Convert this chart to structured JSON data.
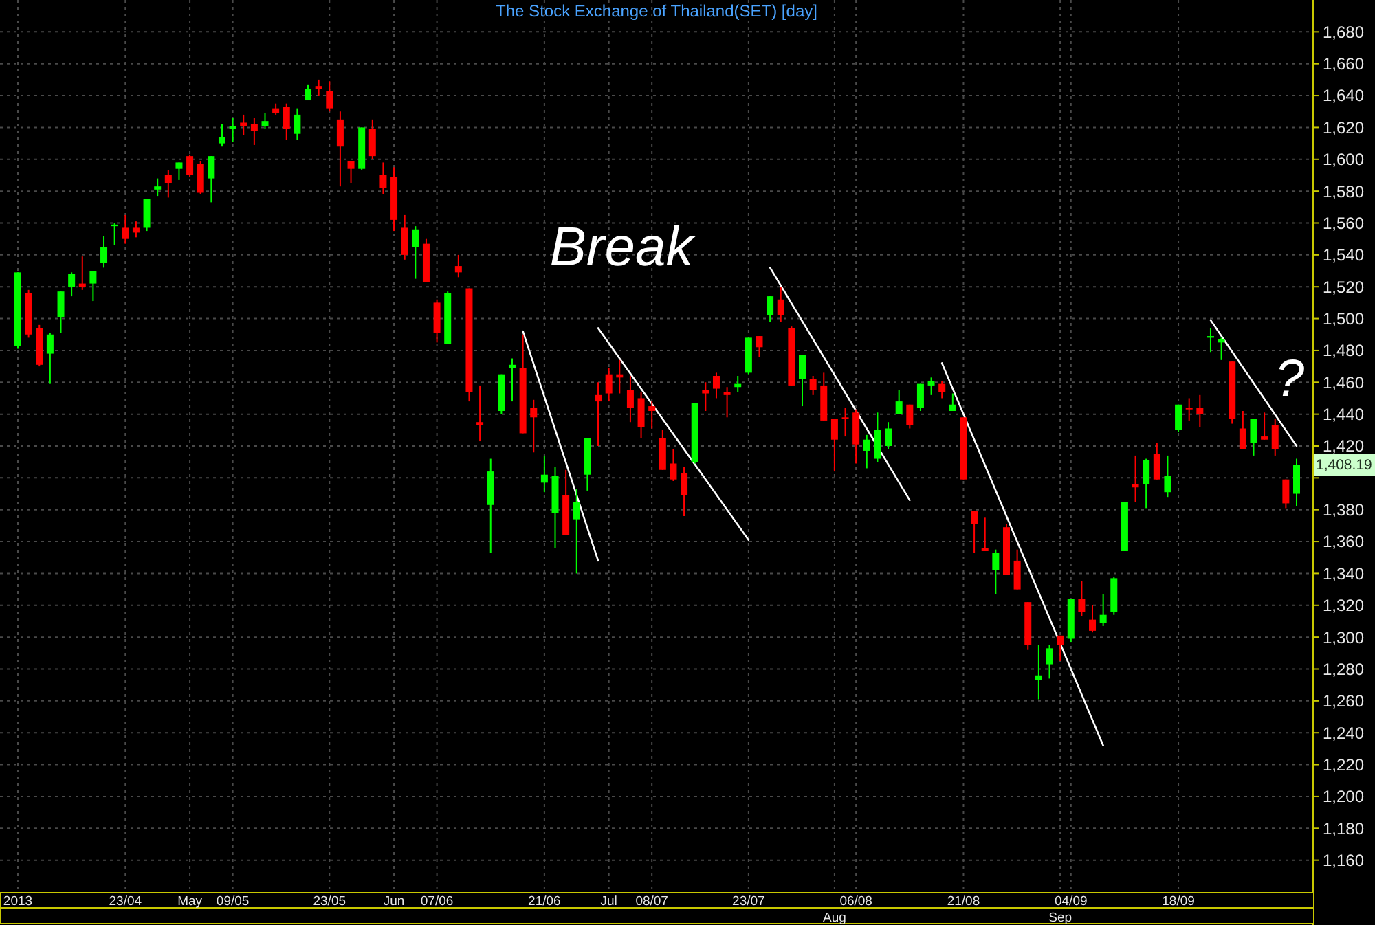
{
  "chart_data": {
    "type": "candlestick",
    "title": "The Stock Exchange of Thailand(SET) [day]",
    "categories": [
      "2013",
      null,
      null,
      null,
      null,
      null,
      null,
      null,
      null,
      null,
      "23/04",
      null,
      null,
      null,
      null,
      null,
      "May",
      null,
      null,
      null,
      "09/05",
      null,
      null,
      null,
      null,
      null,
      null,
      null,
      null,
      "23/05",
      null,
      null,
      null,
      null,
      null,
      "Jun",
      null,
      null,
      null,
      "07/06",
      null,
      null,
      null,
      null,
      null,
      null,
      null,
      null,
      null,
      "21/06",
      null,
      null,
      null,
      null,
      null,
      "Jul",
      null,
      null,
      null,
      "08/07",
      null,
      null,
      null,
      null,
      null,
      null,
      null,
      null,
      "23/07",
      null,
      null,
      null,
      null,
      null,
      null,
      null,
      "Aug",
      null,
      "06/08",
      null,
      null,
      null,
      null,
      null,
      null,
      null,
      null,
      null,
      "21/08",
      null,
      null,
      null,
      null,
      null,
      null,
      null,
      null,
      "Sep",
      "04/09",
      null,
      null,
      null,
      null,
      null,
      null,
      null,
      null,
      null,
      "18/09",
      null,
      null,
      null,
      null,
      null,
      null,
      null,
      null,
      null,
      null,
      null
    ],
    "series": [
      {
        "type": "candlestick",
        "ohlc": [
          [
            1483,
            1529,
            1481,
            1529
          ],
          [
            1516,
            1518,
            1488,
            1490
          ],
          [
            1494,
            1496,
            1470,
            1471
          ],
          [
            1478,
            1491,
            1459,
            1490
          ],
          [
            1501,
            1517,
            1491,
            1517
          ],
          [
            1520,
            1529,
            1514,
            1528
          ],
          [
            1522,
            1539,
            1518,
            1520
          ],
          [
            1522,
            1530,
            1511,
            1530
          ],
          [
            1535,
            1552,
            1532,
            1545
          ],
          [
            1558,
            1560,
            1546,
            1559
          ],
          [
            1557,
            1565,
            1547,
            1550
          ],
          [
            1557,
            1561,
            1551,
            1554
          ],
          [
            1557,
            1575,
            1555,
            1575
          ],
          [
            1581,
            1588,
            1577,
            1583
          ],
          [
            1590,
            1593,
            1576,
            1585
          ],
          [
            1594,
            1598,
            1587,
            1598
          ],
          [
            1602,
            1603,
            1589,
            1590
          ],
          [
            1597,
            1599,
            1578,
            1579
          ],
          [
            1588,
            1602,
            1573,
            1602
          ],
          [
            1610,
            1622,
            1608,
            1614
          ],
          [
            1619,
            1626,
            1611,
            1621
          ],
          [
            1623,
            1628,
            1615,
            1621
          ],
          [
            1622,
            1626,
            1609,
            1618
          ],
          [
            1621,
            1629,
            1619,
            1624
          ],
          [
            1632,
            1635,
            1628,
            1629
          ],
          [
            1633,
            1635,
            1612,
            1619
          ],
          [
            1616,
            1632,
            1612,
            1628
          ],
          [
            1637,
            1647,
            1637,
            1644
          ],
          [
            1646,
            1650,
            1640,
            1644
          ],
          [
            1643,
            1649,
            1630,
            1632
          ],
          [
            1625,
            1630,
            1583,
            1608
          ],
          [
            1599,
            1599,
            1585,
            1594
          ],
          [
            1594,
            1620,
            1593,
            1620
          ],
          [
            1619,
            1625,
            1600,
            1602
          ],
          [
            1590,
            1598,
            1578,
            1582
          ],
          [
            1589,
            1595,
            1555,
            1562
          ],
          [
            1557,
            1565,
            1537,
            1540
          ],
          [
            1545,
            1558,
            1525,
            1556
          ],
          [
            1547,
            1550,
            1523,
            1523
          ],
          [
            1510,
            1512,
            1485,
            1491
          ],
          [
            1484,
            1517,
            1484,
            1516
          ],
          [
            1533,
            1540,
            1526,
            1529
          ],
          [
            1519,
            1519,
            1448,
            1454
          ],
          [
            1435,
            1458,
            1423,
            1433
          ],
          [
            1383,
            1412,
            1353,
            1404
          ],
          [
            1442,
            1465,
            1440,
            1465
          ],
          [
            1469,
            1475,
            1448,
            1471
          ],
          [
            1469,
            1490,
            1428,
            1428
          ],
          [
            1444,
            1449,
            1416,
            1438
          ],
          [
            1397,
            1414,
            1391,
            1402
          ],
          [
            1378,
            1407,
            1356,
            1401
          ],
          [
            1389,
            1405,
            1364,
            1364
          ],
          [
            1374,
            1393,
            1340,
            1385
          ],
          [
            1402,
            1425,
            1392,
            1425
          ],
          [
            1452,
            1460,
            1420,
            1448
          ],
          [
            1465,
            1469,
            1448,
            1453
          ],
          [
            1465,
            1474,
            1453,
            1463
          ],
          [
            1455,
            1464,
            1435,
            1444
          ],
          [
            1450,
            1454,
            1425,
            1432
          ],
          [
            1445,
            1448,
            1431,
            1442
          ],
          [
            1425,
            1430,
            1405,
            1405
          ],
          [
            1409,
            1418,
            1398,
            1399
          ],
          [
            1403,
            1407,
            1376,
            1389
          ],
          [
            1410,
            1447,
            1409,
            1447
          ],
          [
            1455,
            1460,
            1442,
            1453
          ],
          [
            1464,
            1466,
            1450,
            1456
          ],
          [
            1454,
            1457,
            1438,
            1452
          ],
          [
            1457,
            1464,
            1454,
            1459
          ],
          [
            1466,
            1488,
            1465,
            1488
          ],
          [
            1489,
            1489,
            1476,
            1482
          ],
          [
            1502,
            1514,
            1498,
            1514
          ],
          [
            1512,
            1520,
            1498,
            1502
          ],
          [
            1494,
            1495,
            1458,
            1458
          ],
          [
            1462,
            1477,
            1445,
            1477
          ],
          [
            1462,
            1464,
            1452,
            1455
          ],
          [
            1458,
            1466,
            1436,
            1436
          ],
          [
            1437,
            1437,
            1404,
            1424
          ],
          [
            1438,
            1444,
            1426,
            1437
          ],
          [
            1441,
            1443,
            1409,
            1421
          ],
          [
            1417,
            1427,
            1406,
            1424
          ],
          [
            1412,
            1441,
            1410,
            1430
          ],
          [
            1420,
            1435,
            1418,
            1431
          ],
          [
            1440,
            1455,
            1440,
            1448
          ],
          [
            1446,
            1446,
            1431,
            1433
          ],
          [
            1444,
            1459,
            1442,
            1459
          ],
          [
            1458,
            1463,
            1452,
            1461
          ],
          [
            1459,
            1461,
            1450,
            1454
          ],
          [
            1442,
            1453,
            1442,
            1446
          ],
          [
            1438,
            1438,
            1399,
            1399
          ],
          [
            1379,
            1379,
            1353,
            1371
          ],
          [
            1356,
            1375,
            1354,
            1354
          ],
          [
            1342,
            1355,
            1327,
            1353
          ],
          [
            1369,
            1371,
            1339,
            1339
          ],
          [
            1348,
            1355,
            1330,
            1330
          ],
          [
            1322,
            1322,
            1292,
            1295
          ],
          [
            1273,
            1295,
            1261,
            1276
          ],
          [
            1283,
            1295,
            1274,
            1293
          ],
          [
            1301,
            1301,
            1285,
            1295
          ],
          [
            1299,
            1324,
            1297,
            1324
          ],
          [
            1324,
            1335,
            1313,
            1316
          ],
          [
            1311,
            1320,
            1303,
            1304
          ],
          [
            1309,
            1327,
            1307,
            1314
          ],
          [
            1316,
            1338,
            1314,
            1337
          ],
          [
            1354,
            1385,
            1354,
            1385
          ],
          [
            1396,
            1414,
            1385,
            1394
          ],
          [
            1396,
            1412,
            1381,
            1411
          ],
          [
            1415,
            1422,
            1399,
            1399
          ],
          [
            1391,
            1414,
            1388,
            1401
          ],
          [
            1430,
            1446,
            1429,
            1446
          ],
          [
            1444,
            1450,
            1436,
            1443
          ],
          [
            1444,
            1452,
            1432,
            1440
          ],
          [
            1488,
            1494,
            1479,
            1489
          ],
          [
            1485,
            1488,
            1474,
            1487
          ],
          [
            1473,
            1473,
            1434,
            1437
          ],
          [
            1431,
            1442,
            1418,
            1418
          ],
          [
            1422,
            1437,
            1414,
            1437
          ],
          [
            1426,
            1441,
            1424,
            1424
          ],
          [
            1433,
            1437,
            1414,
            1418
          ],
          [
            1399,
            1399,
            1381,
            1384
          ],
          [
            1390,
            1412,
            1382,
            1408.19
          ]
        ],
        "colors": [
          "#00ff00",
          "#ff0000",
          "#ff0000",
          "#00ff00",
          "#00ff00",
          "#00ff00",
          "#ff0000",
          "#00ff00",
          "#00ff00",
          "#00ff00",
          "#ff0000",
          "#ff0000",
          "#00ff00",
          "#00ff00",
          "#ff0000",
          "#00ff00",
          "#ff0000",
          "#ff0000",
          "#00ff00",
          "#00ff00",
          "#00ff00",
          "#ff0000",
          "#ff0000",
          "#00ff00",
          "#ff0000",
          "#ff0000",
          "#00ff00",
          "#00ff00",
          "#ff0000",
          "#ff0000",
          "#ff0000",
          "#ff0000",
          "#00ff00",
          "#ff0000",
          "#ff0000",
          "#ff0000",
          "#ff0000",
          "#00ff00",
          "#ff0000",
          "#ff0000",
          "#00ff00",
          "#ff0000",
          "#ff0000",
          "#ff0000",
          "#00ff00",
          "#00ff00",
          "#00ff00",
          "#ff0000",
          "#ff0000",
          "#00ff00",
          "#00ff00",
          "#ff0000",
          "#00ff00",
          "#00ff00",
          "#ff0000",
          "#ff0000",
          "#ff0000",
          "#ff0000",
          "#ff0000",
          "#ff0000",
          "#ff0000",
          "#ff0000",
          "#ff0000",
          "#00ff00",
          "#ff0000",
          "#ff0000",
          "#ff0000",
          "#00ff00",
          "#00ff00",
          "#ff0000",
          "#00ff00",
          "#ff0000",
          "#ff0000",
          "#00ff00",
          "#ff0000",
          "#ff0000",
          "#ff0000",
          "#ff0000",
          "#ff0000",
          "#00ff00",
          "#00ff00",
          "#00ff00",
          "#00ff00",
          "#ff0000",
          "#00ff00",
          "#00ff00",
          "#ff0000",
          "#00ff00",
          "#ff0000",
          "#ff0000",
          "#ff0000",
          "#00ff00",
          "#ff0000",
          "#ff0000",
          "#ff0000",
          "#00ff00",
          "#00ff00",
          "#ff0000",
          "#00ff00",
          "#ff0000",
          "#ff0000",
          "#00ff00",
          "#00ff00",
          "#00ff00",
          "#ff0000",
          "#00ff00",
          "#ff0000",
          "#00ff00",
          "#00ff00",
          "#ff0000",
          "#ff0000",
          "#00ff00",
          "#00ff00",
          "#ff0000",
          "#ff0000",
          "#00ff00",
          "#ff0000",
          "#ff0000",
          "#ff0000",
          "#00ff00"
        ]
      },
      {
        "type": "line",
        "color": "#ffffff",
        "values": [
          null,
          null,
          null,
          null,
          null,
          null,
          null,
          null,
          null,
          null,
          null,
          null,
          null,
          null,
          null,
          null,
          null,
          null,
          null,
          null,
          null,
          null,
          null,
          null,
          null,
          null,
          null,
          null,
          null,
          null,
          null,
          null,
          null,
          null,
          null,
          null,
          null,
          null,
          null,
          null,
          null,
          null,
          null,
          null,
          null,
          null,
          null,
          1492,
          null,
          null,
          null,
          null,
          null,
          null,
          1348,
          null,
          null,
          null,
          null,
          null,
          null,
          null,
          null,
          null,
          null,
          null,
          null,
          null,
          null,
          null,
          null,
          null,
          null,
          null,
          null,
          null,
          null,
          null,
          null,
          null,
          null,
          null,
          null,
          null,
          null,
          null,
          null,
          null,
          null,
          null,
          null,
          null,
          null,
          null,
          null,
          null,
          null,
          null,
          null,
          null,
          null,
          null,
          null,
          null,
          null,
          null,
          null,
          null,
          null,
          null,
          null,
          null,
          null,
          null,
          null,
          null,
          null,
          null,
          null,
          null
        ]
      },
      {
        "type": "line",
        "color": "#ffffff",
        "values": [
          null,
          null,
          null,
          null,
          null,
          null,
          null,
          null,
          null,
          null,
          null,
          null,
          null,
          null,
          null,
          null,
          null,
          null,
          null,
          null,
          null,
          null,
          null,
          null,
          null,
          null,
          null,
          null,
          null,
          null,
          null,
          null,
          null,
          null,
          null,
          null,
          null,
          null,
          null,
          null,
          null,
          null,
          null,
          null,
          null,
          null,
          null,
          null,
          null,
          null,
          null,
          null,
          null,
          null,
          1494,
          null,
          null,
          null,
          null,
          null,
          null,
          null,
          null,
          null,
          null,
          null,
          null,
          null,
          1361,
          null,
          null,
          null,
          null,
          null,
          null,
          null,
          null,
          null,
          null,
          null,
          null,
          null,
          null,
          null,
          null,
          null,
          null,
          null,
          null,
          null,
          null,
          null,
          null,
          null,
          null,
          null,
          null,
          null,
          null,
          null,
          null,
          null,
          null,
          null,
          null,
          null,
          null,
          null,
          null,
          null,
          null,
          null,
          null,
          null,
          null,
          null,
          null,
          null,
          null,
          null
        ]
      },
      {
        "type": "line",
        "color": "#ffffff",
        "values": [
          null,
          null,
          null,
          null,
          null,
          null,
          null,
          null,
          null,
          null,
          null,
          null,
          null,
          null,
          null,
          null,
          null,
          null,
          null,
          null,
          null,
          null,
          null,
          null,
          null,
          null,
          null,
          null,
          null,
          null,
          null,
          null,
          null,
          null,
          null,
          null,
          null,
          null,
          null,
          null,
          null,
          null,
          null,
          null,
          null,
          null,
          null,
          null,
          null,
          null,
          null,
          null,
          null,
          null,
          null,
          null,
          null,
          null,
          null,
          null,
          null,
          null,
          null,
          null,
          null,
          null,
          null,
          null,
          null,
          null,
          1532,
          null,
          null,
          null,
          null,
          null,
          null,
          null,
          null,
          null,
          null,
          null,
          null,
          1386,
          null,
          null,
          null,
          null,
          null,
          null,
          null,
          null,
          null,
          null,
          null,
          null,
          null,
          null,
          null,
          null,
          null,
          null,
          null,
          null,
          null,
          null,
          null,
          null,
          null,
          null,
          null,
          null,
          null,
          null,
          null,
          null,
          null,
          null,
          null,
          null
        ]
      },
      {
        "type": "line",
        "color": "#ffffff",
        "values": [
          null,
          null,
          null,
          null,
          null,
          null,
          null,
          null,
          null,
          null,
          null,
          null,
          null,
          null,
          null,
          null,
          null,
          null,
          null,
          null,
          null,
          null,
          null,
          null,
          null,
          null,
          null,
          null,
          null,
          null,
          null,
          null,
          null,
          null,
          null,
          null,
          null,
          null,
          null,
          null,
          null,
          null,
          null,
          null,
          null,
          null,
          null,
          null,
          null,
          null,
          null,
          null,
          null,
          null,
          null,
          null,
          null,
          null,
          null,
          null,
          null,
          null,
          null,
          null,
          null,
          null,
          null,
          null,
          null,
          null,
          null,
          null,
          null,
          null,
          null,
          null,
          null,
          null,
          null,
          null,
          null,
          null,
          null,
          null,
          null,
          null,
          1472,
          null,
          null,
          null,
          null,
          null,
          null,
          null,
          null,
          null,
          null,
          null,
          null,
          null,
          null,
          1232,
          null,
          null,
          null,
          null,
          null,
          null,
          null,
          null,
          null,
          null,
          null,
          null,
          null,
          null,
          null,
          null,
          null,
          null
        ]
      },
      {
        "type": "line",
        "color": "#ffffff",
        "values": [
          null,
          null,
          null,
          null,
          null,
          null,
          null,
          null,
          null,
          null,
          null,
          null,
          null,
          null,
          null,
          null,
          null,
          null,
          null,
          null,
          null,
          null,
          null,
          null,
          null,
          null,
          null,
          null,
          null,
          null,
          null,
          null,
          null,
          null,
          null,
          null,
          null,
          null,
          null,
          null,
          null,
          null,
          null,
          null,
          null,
          null,
          null,
          null,
          null,
          null,
          null,
          null,
          null,
          null,
          null,
          null,
          null,
          null,
          null,
          null,
          null,
          null,
          null,
          null,
          null,
          null,
          null,
          null,
          null,
          null,
          null,
          null,
          null,
          null,
          null,
          null,
          null,
          null,
          null,
          null,
          null,
          null,
          null,
          null,
          null,
          null,
          null,
          null,
          null,
          null,
          null,
          null,
          null,
          null,
          null,
          null,
          null,
          null,
          null,
          null,
          null,
          null,
          null,
          null,
          null,
          null,
          null,
          null,
          null,
          null,
          null,
          1499,
          null,
          null,
          null,
          null,
          null,
          null,
          null,
          1420
        ]
      }
    ],
    "ylim": [
      1140,
      1700
    ],
    "yticks": [
      {
        "value": 1160,
        "label": "1,160"
      },
      {
        "value": 1180,
        "label": "1,180"
      },
      {
        "value": 1200,
        "label": "1,200"
      },
      {
        "value": 1220,
        "label": "1,220"
      },
      {
        "value": 1240,
        "label": "1,240"
      },
      {
        "value": 1260,
        "label": "1,260"
      },
      {
        "value": 1280,
        "label": "1,280"
      },
      {
        "value": 1300,
        "label": "1,300"
      },
      {
        "value": 1320,
        "label": "1,320"
      },
      {
        "value": 1340,
        "label": "1,340"
      },
      {
        "value": 1360,
        "label": "1,360"
      },
      {
        "value": 1380,
        "label": "1,380"
      },
      {
        "value": 1400,
        "label": null
      },
      {
        "value": 1420,
        "label": "1,420"
      },
      {
        "value": 1440,
        "label": "1,440"
      },
      {
        "value": 1460,
        "label": "1,460"
      },
      {
        "value": 1480,
        "label": "1,480"
      },
      {
        "value": 1500,
        "label": "1,500"
      },
      {
        "value": 1520,
        "label": "1,520"
      },
      {
        "value": 1540,
        "label": "1,540"
      },
      {
        "value": 1560,
        "label": "1,560"
      },
      {
        "value": 1580,
        "label": "1,580"
      },
      {
        "value": 1600,
        "label": "1,600"
      },
      {
        "value": 1620,
        "label": "1,620"
      },
      {
        "value": 1640,
        "label": "1,640"
      },
      {
        "value": 1660,
        "label": "1,660"
      },
      {
        "value": 1680,
        "label": "1,680"
      }
    ],
    "grid": true,
    "annotations": [
      "Break",
      "?",
      "1,408.19"
    ]
  }
}
